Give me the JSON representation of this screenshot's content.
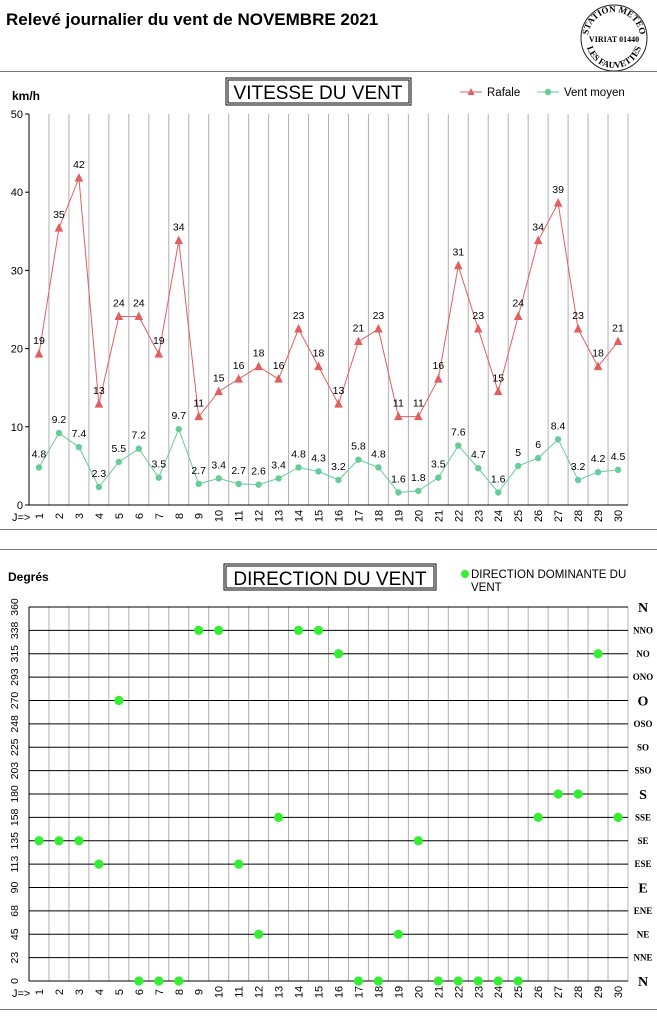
{
  "page": {
    "title": "Relevé journalier du vent de NOVEMBRE 2021",
    "stamp_lines": [
      "STATION METEO",
      "VIRIAT 01440",
      "LES FAUVETTES"
    ]
  },
  "colors": {
    "rafale": "#e06060",
    "vent_moyen": "#66cc99",
    "direction_point": "#33ee33",
    "grid": "#b0b0b0"
  },
  "chart_data": [
    {
      "type": "line",
      "title": "VITESSE DU VENT",
      "ylabel": "km/h",
      "x_prefix": "J=>",
      "ylim": [
        0,
        50
      ],
      "yticks": [
        0,
        10,
        20,
        30,
        40,
        50
      ],
      "legend_position": "top-right",
      "categories": [
        "1",
        "2",
        "3",
        "4",
        "5",
        "6",
        "7",
        "8",
        "9",
        "10",
        "11",
        "12",
        "13",
        "14",
        "15",
        "16",
        "17",
        "18",
        "19",
        "20",
        "21",
        "22",
        "23",
        "24",
        "25",
        "26",
        "27",
        "28",
        "29",
        "30"
      ],
      "series": [
        {
          "name": "Rafale",
          "marker": "triangle",
          "values": [
            19.3,
            35.4,
            41.8,
            12.9,
            24.1,
            24.1,
            19.3,
            33.8,
            11.3,
            14.5,
            16.1,
            17.7,
            16.1,
            22.5,
            17.7,
            12.9,
            20.9,
            22.5,
            11.3,
            11.3,
            16.1,
            30.6,
            22.5,
            14.5,
            24.1,
            33.8,
            38.6,
            22.5,
            17.7,
            20.9
          ],
          "labels": [
            "19",
            "35",
            "42",
            "13",
            "24",
            "24",
            "19",
            "34",
            "11",
            "15",
            "16",
            "18",
            "16",
            "23",
            "18",
            "13",
            "21",
            "23",
            "11",
            "11",
            "16",
            "31",
            "23",
            "15",
            "24",
            "34",
            "39",
            "23",
            "18",
            "21"
          ]
        },
        {
          "name": "Vent moyen",
          "marker": "circle",
          "values": [
            4.8,
            9.2,
            7.4,
            2.3,
            5.5,
            7.2,
            3.5,
            9.7,
            2.7,
            3.4,
            2.7,
            2.6,
            3.4,
            4.8,
            4.3,
            3.2,
            5.8,
            4.8,
            1.6,
            1.8,
            3.5,
            7.6,
            4.7,
            1.6,
            5,
            6,
            8.4,
            3.2,
            4.2,
            4.5
          ],
          "labels": [
            "4.8",
            "9.2",
            "7.4",
            "2.3",
            "5.5",
            "7.2",
            "3.5",
            "9.7",
            "2.7",
            "3.4",
            "2.7",
            "2.6",
            "3.4",
            "4.8",
            "4.3",
            "3.2",
            "5.8",
            "4.8",
            "1.6",
            "1.8",
            "3.5",
            "7.6",
            "4.7",
            "1.6",
            "5",
            "6",
            "8.4",
            "3.2",
            "4.2",
            "4.5"
          ]
        }
      ]
    },
    {
      "type": "scatter",
      "title": "DIRECTION DU VENT",
      "ylabel": "Degrés",
      "x_prefix": "J=>",
      "ylim": [
        0,
        360
      ],
      "yticks": [
        "0",
        "23",
        "45",
        "68",
        "90",
        "113",
        "135",
        "158",
        "180",
        "203",
        "225",
        "248",
        "270",
        "293",
        "315",
        "338",
        "360"
      ],
      "directions": [
        "N",
        "NNE",
        "NE",
        "ENE",
        "E",
        "ESE",
        "SE",
        "SSE",
        "S",
        "SSO",
        "SO",
        "OSO",
        "O",
        "ONO",
        "NO",
        "NNO",
        "N"
      ],
      "major_directions": [
        "N",
        "E",
        "S",
        "O"
      ],
      "legend_position": "top-right",
      "series": [
        {
          "name": "DIRECTION DOMINANTE DU VENT",
          "x": [
            1,
            2,
            3,
            4,
            5,
            6,
            7,
            8,
            9,
            10,
            11,
            12,
            13,
            14,
            15,
            16,
            17,
            18,
            19,
            20,
            21,
            22,
            23,
            24,
            25,
            26,
            27,
            28,
            29,
            30
          ],
          "y": [
            135,
            135,
            135,
            112.5,
            270,
            0,
            0,
            0,
            337.5,
            337.5,
            112.5,
            45,
            157.5,
            337.5,
            337.5,
            315,
            0,
            0,
            45,
            135,
            0,
            0,
            0,
            0,
            0,
            157.5,
            180,
            180,
            315,
            157.5
          ]
        }
      ]
    }
  ]
}
